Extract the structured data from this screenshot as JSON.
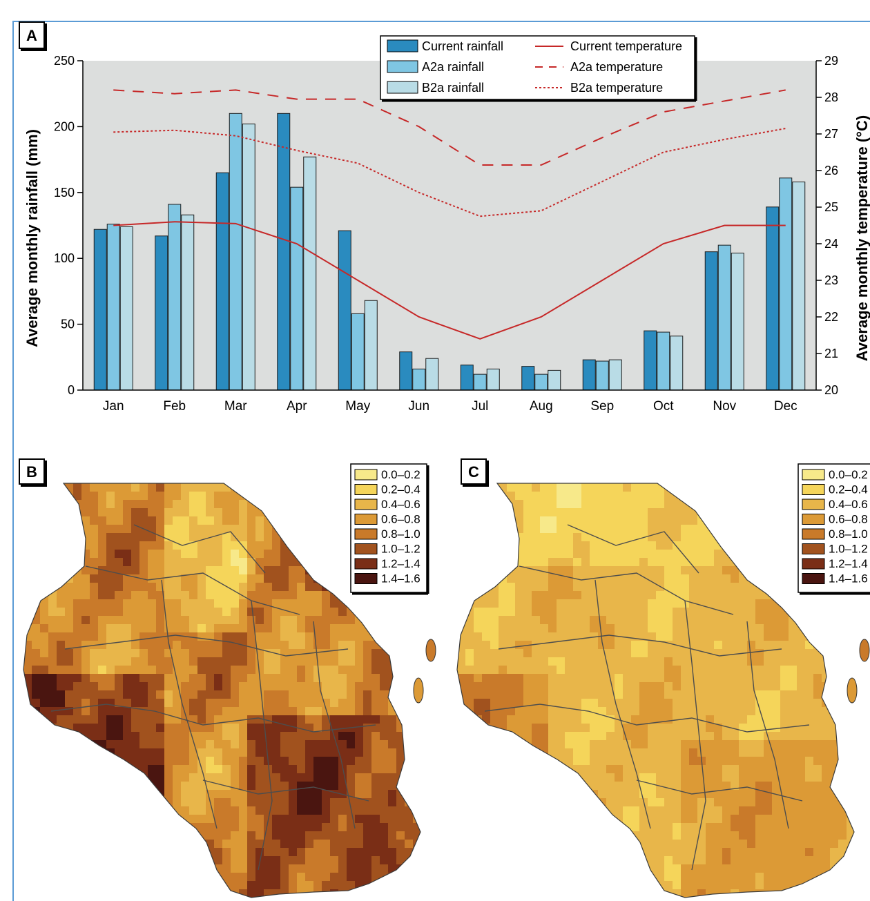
{
  "panel_labels": {
    "a": "A",
    "b": "B",
    "c": "C"
  },
  "chart_data": {
    "type": "bar",
    "categories": [
      "Jan",
      "Feb",
      "Mar",
      "Apr",
      "May",
      "Jun",
      "Jul",
      "Aug",
      "Sep",
      "Oct",
      "Nov",
      "Dec"
    ],
    "series": [
      {
        "name": "Current rainfall",
        "kind": "bar",
        "color": "#2a8bbf",
        "values": [
          122,
          117,
          165,
          210,
          121,
          29,
          19,
          18,
          23,
          45,
          105,
          139
        ]
      },
      {
        "name": "A2a rainfall",
        "kind": "bar",
        "color": "#7fc6e3",
        "values": [
          126,
          141,
          210,
          154,
          58,
          16,
          12,
          12,
          22,
          44,
          110,
          161
        ]
      },
      {
        "name": "B2a rainfall",
        "kind": "bar",
        "color": "#b9dce6",
        "values": [
          124,
          133,
          202,
          177,
          68,
          24,
          16,
          15,
          23,
          41,
          104,
          158
        ]
      },
      {
        "name": "Current temperature",
        "kind": "line",
        "dash": "solid",
        "color": "#c62828",
        "values": [
          24.5,
          24.6,
          24.55,
          24.0,
          23.0,
          22.0,
          21.4,
          22.0,
          23.0,
          24.0,
          24.5,
          24.5
        ]
      },
      {
        "name": "A2a temperature",
        "kind": "line",
        "dash": "dashed",
        "color": "#c62828",
        "values": [
          28.2,
          28.1,
          28.2,
          27.95,
          27.95,
          27.2,
          26.15,
          26.15,
          26.9,
          27.6,
          27.9,
          28.2
        ]
      },
      {
        "name": "B2a temperature",
        "kind": "line",
        "dash": "dotted",
        "color": "#c62828",
        "values": [
          27.05,
          27.1,
          26.95,
          26.55,
          26.2,
          25.4,
          24.75,
          24.9,
          25.7,
          26.5,
          26.85,
          27.15
        ]
      }
    ],
    "ylabel": "Average monthly rainfall (mm)",
    "ylim": [
      0,
      250
    ],
    "yticks": [
      "0",
      "50",
      "100",
      "150",
      "200",
      "250"
    ],
    "y2label": "Average monthly temperature (°C)",
    "y2lim": [
      20,
      29
    ],
    "y2ticks": [
      "20",
      "21",
      "22",
      "23",
      "24",
      "25",
      "26",
      "27",
      "28",
      "29"
    ],
    "legend_placement": "top-right",
    "plot_background": "#dcdedd"
  },
  "maps": {
    "legend_ranges": [
      "0.0–0.2",
      "0.2–0.4",
      "0.4–0.6",
      "0.6–0.8",
      "0.8–1.0",
      "1.0–1.2",
      "1.2–1.4",
      "1.4–1.6"
    ],
    "legend_colors": [
      "#f7e98a",
      "#f5d55a",
      "#e8b64a",
      "#dc9a36",
      "#c97a2a",
      "#a1521e",
      "#7a2e16",
      "#4a1510"
    ]
  }
}
